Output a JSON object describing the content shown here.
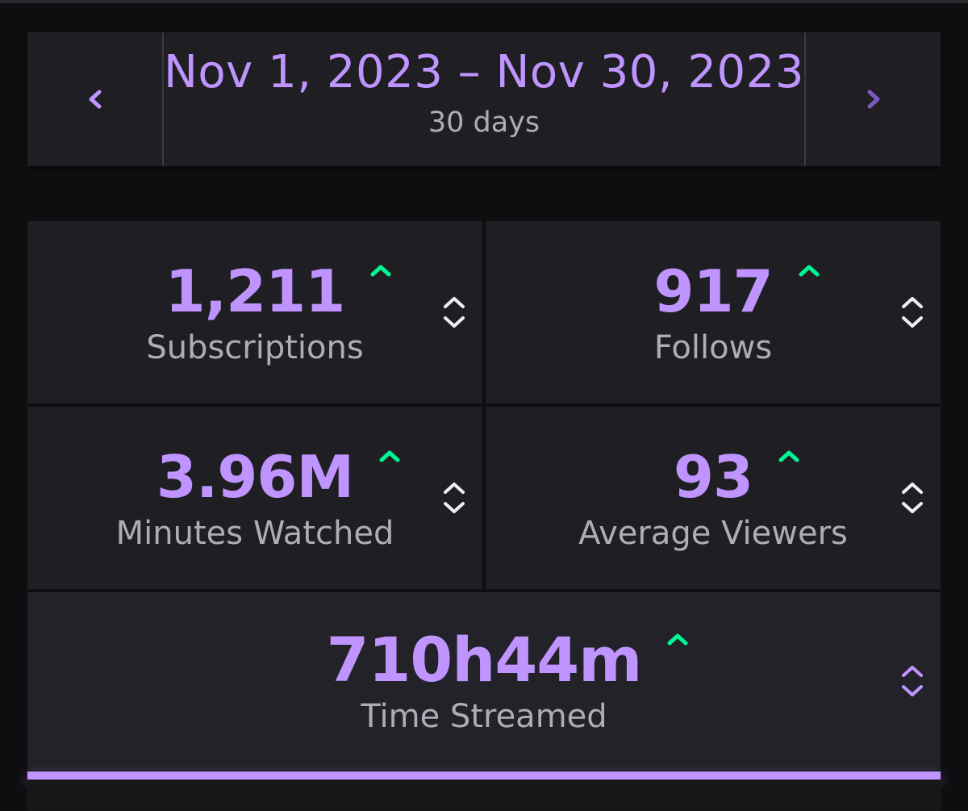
{
  "date_nav": {
    "range": "Nov 1, 2023 – Nov 30, 2023",
    "duration": "30 days"
  },
  "stats": [
    {
      "value": "1,211",
      "label": "Subscriptions",
      "trend": "up"
    },
    {
      "value": "917",
      "label": "Follows",
      "trend": "up"
    },
    {
      "value": "3.96M",
      "label": "Minutes Watched",
      "trend": "up"
    },
    {
      "value": "93",
      "label": "Average Viewers",
      "trend": "up"
    },
    {
      "value": "710h44m",
      "label": "Time Streamed",
      "trend": "up",
      "selected": true
    }
  ],
  "colors": {
    "accent": "#bf94ff",
    "trend_up": "#00f593",
    "label": "#adadb8",
    "panel": "#1f1f23",
    "background": "#0e0e10"
  },
  "icons": {
    "prev": "chevron-left-icon",
    "next": "chevron-right-icon",
    "trend": "caret-up-icon",
    "sort": "sort-icon"
  }
}
